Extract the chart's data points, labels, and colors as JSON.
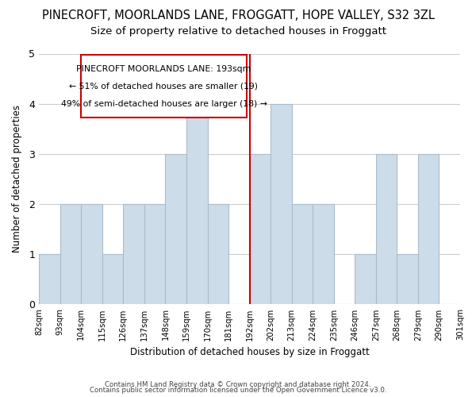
{
  "title": "PINECROFT, MOORLANDS LANE, FROGGATT, HOPE VALLEY, S32 3ZL",
  "subtitle": "Size of property relative to detached houses in Froggatt",
  "xlabel": "Distribution of detached houses by size in Froggatt",
  "ylabel": "Number of detached properties",
  "bin_labels": [
    "82sqm",
    "93sqm",
    "104sqm",
    "115sqm",
    "126sqm",
    "137sqm",
    "148sqm",
    "159sqm",
    "170sqm",
    "181sqm",
    "192sqm",
    "202sqm",
    "213sqm",
    "224sqm",
    "235sqm",
    "246sqm",
    "257sqm",
    "268sqm",
    "279sqm",
    "290sqm",
    "301sqm"
  ],
  "bar_heights": [
    1,
    2,
    2,
    1,
    2,
    2,
    3,
    4,
    2,
    0,
    3,
    4,
    2,
    2,
    0,
    1,
    3,
    1,
    3,
    0
  ],
  "bar_color": "#ccdce8",
  "bar_edge_color": "#aabccc",
  "vline_index": 10,
  "vline_color": "#cc0000",
  "annotation_title": "PINECROFT MOORLANDS LANE: 193sqm",
  "annotation_line1": "← 51% of detached houses are smaller (19)",
  "annotation_line2": "49% of semi-detached houses are larger (18) →",
  "annotation_box_color": "#ffffff",
  "annotation_box_edge": "#cc0000",
  "ylim": [
    0,
    5
  ],
  "footer1": "Contains HM Land Registry data © Crown copyright and database right 2024.",
  "footer2": "Contains public sector information licensed under the Open Government Licence v3.0.",
  "title_fontsize": 10.5,
  "subtitle_fontsize": 9.5,
  "background_color": "#ffffff"
}
